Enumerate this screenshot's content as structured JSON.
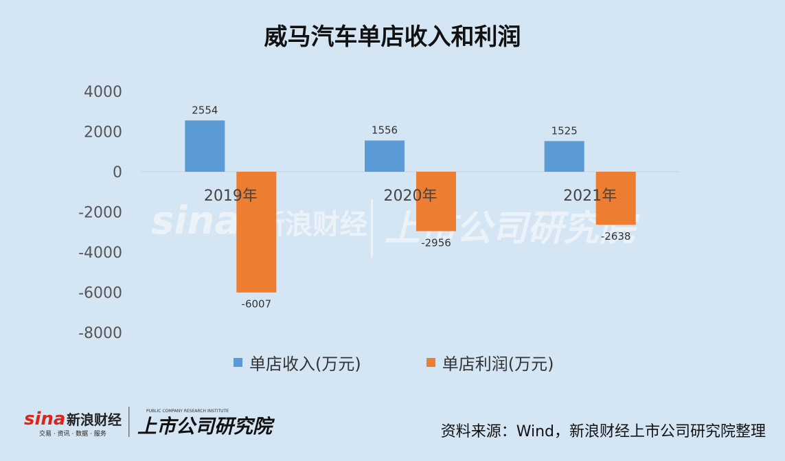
{
  "title": "威马汽车单店收入和利润",
  "source": "资料来源：Wind，新浪财经上市公司研究院整理",
  "logo": {
    "brand": "新浪财经",
    "brand_sub": "交易 · 资讯 · 数据 · 服务",
    "institute": "上市公司研究院",
    "institute_en": "PUBLIC COMPANY RESEARCH INSTITUTE"
  },
  "colors": {
    "background": "#d4e5f3",
    "revenue": "#5b9bd5",
    "profit": "#ed7d31"
  },
  "chart_data": {
    "type": "bar",
    "categories": [
      "2019年",
      "2020年",
      "2021年"
    ],
    "series": [
      {
        "name": "单店收入(万元)",
        "values": [
          2554,
          1556,
          1525
        ],
        "color": "#5b9bd5"
      },
      {
        "name": "单店利润(万元)",
        "values": [
          -6007,
          -2956,
          -2638
        ],
        "color": "#ed7d31"
      }
    ],
    "y_ticks": [
      "4000",
      "2000",
      "0",
      "-2000",
      "-4000",
      "-6000",
      "-8000"
    ],
    "ylim": [
      -8000,
      4000
    ],
    "data_labels": true,
    "legend_position": "bottom",
    "grid": false
  }
}
